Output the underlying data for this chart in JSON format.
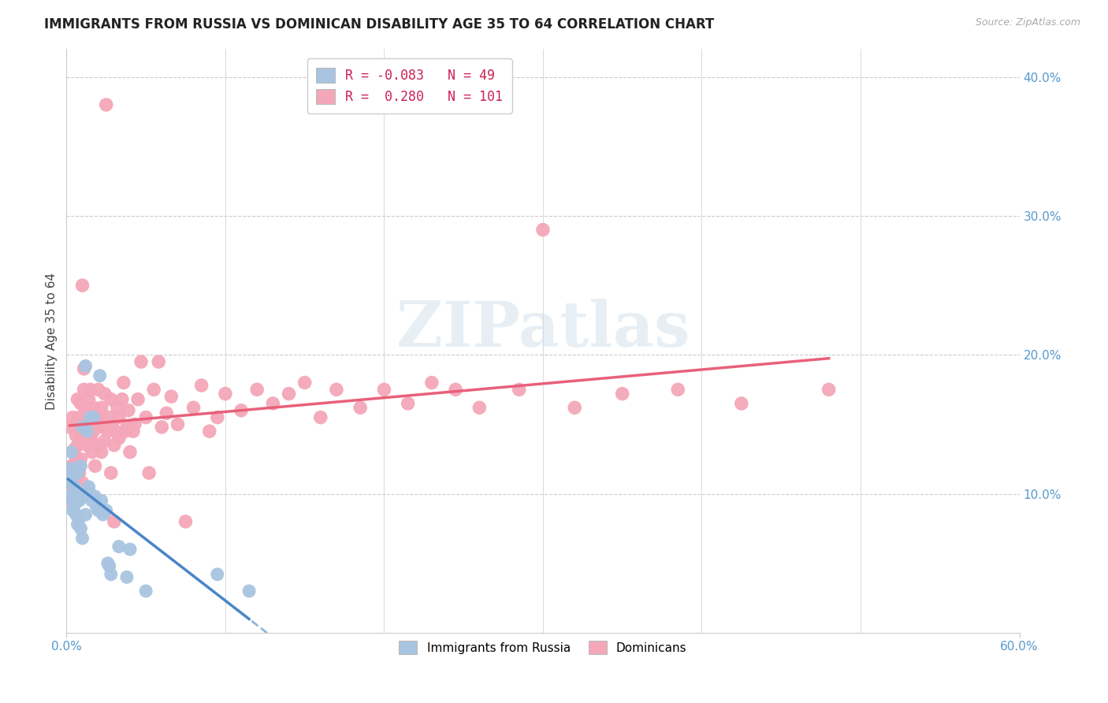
{
  "title": "IMMIGRANTS FROM RUSSIA VS DOMINICAN DISABILITY AGE 35 TO 64 CORRELATION CHART",
  "source": "Source: ZipAtlas.com",
  "ylabel_label": "Disability Age 35 to 64",
  "xlim": [
    0.0,
    0.6
  ],
  "ylim": [
    0.0,
    0.42
  ],
  "x_ticks": [
    0.0,
    0.6
  ],
  "x_tick_labels": [
    "0.0%",
    "60.0%"
  ],
  "y_ticks": [
    0.1,
    0.2,
    0.3,
    0.4
  ],
  "y_tick_labels": [
    "10.0%",
    "20.0%",
    "30.0%",
    "40.0%"
  ],
  "russia_color": "#a8c4e0",
  "dominican_color": "#f4a7b9",
  "russia_line_color": "#4a86c8",
  "dominican_line_color": "#e8607a",
  "russia_dash_color": "#90b8d8",
  "russia_R": -0.083,
  "russia_N": 49,
  "dominican_R": 0.28,
  "dominican_N": 101,
  "legend_label_russia": "Immigrants from Russia",
  "legend_label_dominican": "Dominicans",
  "watermark": "ZIPatlas",
  "russia_scatter": [
    [
      0.001,
      0.118
    ],
    [
      0.002,
      0.098
    ],
    [
      0.003,
      0.108
    ],
    [
      0.003,
      0.13
    ],
    [
      0.004,
      0.112
    ],
    [
      0.004,
      0.095
    ],
    [
      0.004,
      0.088
    ],
    [
      0.005,
      0.105
    ],
    [
      0.005,
      0.092
    ],
    [
      0.005,
      0.118
    ],
    [
      0.006,
      0.095
    ],
    [
      0.006,
      0.085
    ],
    [
      0.006,
      0.102
    ],
    [
      0.007,
      0.098
    ],
    [
      0.007,
      0.078
    ],
    [
      0.007,
      0.115
    ],
    [
      0.008,
      0.082
    ],
    [
      0.008,
      0.095
    ],
    [
      0.009,
      0.12
    ],
    [
      0.009,
      0.1
    ],
    [
      0.009,
      0.075
    ],
    [
      0.01,
      0.068
    ],
    [
      0.01,
      0.148
    ],
    [
      0.011,
      0.098
    ],
    [
      0.012,
      0.085
    ],
    [
      0.012,
      0.192
    ],
    [
      0.013,
      0.145
    ],
    [
      0.013,
      0.1
    ],
    [
      0.014,
      0.105
    ],
    [
      0.015,
      0.155
    ],
    [
      0.015,
      0.1
    ],
    [
      0.016,
      0.095
    ],
    [
      0.017,
      0.155
    ],
    [
      0.018,
      0.098
    ],
    [
      0.019,
      0.09
    ],
    [
      0.02,
      0.088
    ],
    [
      0.021,
      0.185
    ],
    [
      0.022,
      0.095
    ],
    [
      0.023,
      0.085
    ],
    [
      0.025,
      0.088
    ],
    [
      0.026,
      0.05
    ],
    [
      0.027,
      0.048
    ],
    [
      0.028,
      0.042
    ],
    [
      0.033,
      0.062
    ],
    [
      0.038,
      0.04
    ],
    [
      0.04,
      0.06
    ],
    [
      0.05,
      0.03
    ],
    [
      0.095,
      0.042
    ],
    [
      0.115,
      0.03
    ]
  ],
  "dominican_scatter": [
    [
      0.002,
      0.148
    ],
    [
      0.003,
      0.12
    ],
    [
      0.003,
      0.095
    ],
    [
      0.004,
      0.155
    ],
    [
      0.004,
      0.105
    ],
    [
      0.005,
      0.132
    ],
    [
      0.005,
      0.118
    ],
    [
      0.006,
      0.142
    ],
    [
      0.006,
      0.125
    ],
    [
      0.006,
      0.148
    ],
    [
      0.007,
      0.112
    ],
    [
      0.007,
      0.168
    ],
    [
      0.007,
      0.135
    ],
    [
      0.008,
      0.115
    ],
    [
      0.008,
      0.155
    ],
    [
      0.009,
      0.142
    ],
    [
      0.009,
      0.125
    ],
    [
      0.009,
      0.165
    ],
    [
      0.01,
      0.108
    ],
    [
      0.01,
      0.25
    ],
    [
      0.011,
      0.175
    ],
    [
      0.011,
      0.19
    ],
    [
      0.012,
      0.148
    ],
    [
      0.012,
      0.162
    ],
    [
      0.013,
      0.135
    ],
    [
      0.013,
      0.155
    ],
    [
      0.014,
      0.168
    ],
    [
      0.014,
      0.142
    ],
    [
      0.015,
      0.175
    ],
    [
      0.015,
      0.148
    ],
    [
      0.016,
      0.138
    ],
    [
      0.016,
      0.13
    ],
    [
      0.017,
      0.162
    ],
    [
      0.017,
      0.145
    ],
    [
      0.018,
      0.155
    ],
    [
      0.018,
      0.12
    ],
    [
      0.019,
      0.148
    ],
    [
      0.02,
      0.175
    ],
    [
      0.02,
      0.135
    ],
    [
      0.021,
      0.155
    ],
    [
      0.022,
      0.13
    ],
    [
      0.022,
      0.162
    ],
    [
      0.023,
      0.148
    ],
    [
      0.024,
      0.172
    ],
    [
      0.024,
      0.138
    ],
    [
      0.025,
      0.38
    ],
    [
      0.026,
      0.145
    ],
    [
      0.027,
      0.155
    ],
    [
      0.028,
      0.168
    ],
    [
      0.028,
      0.115
    ],
    [
      0.029,
      0.148
    ],
    [
      0.03,
      0.135
    ],
    [
      0.03,
      0.08
    ],
    [
      0.031,
      0.145
    ],
    [
      0.032,
      0.162
    ],
    [
      0.033,
      0.14
    ],
    [
      0.033,
      0.155
    ],
    [
      0.035,
      0.168
    ],
    [
      0.036,
      0.18
    ],
    [
      0.037,
      0.145
    ],
    [
      0.038,
      0.148
    ],
    [
      0.039,
      0.16
    ],
    [
      0.04,
      0.13
    ],
    [
      0.042,
      0.145
    ],
    [
      0.043,
      0.15
    ],
    [
      0.045,
      0.168
    ],
    [
      0.047,
      0.195
    ],
    [
      0.05,
      0.155
    ],
    [
      0.052,
      0.115
    ],
    [
      0.055,
      0.175
    ],
    [
      0.058,
      0.195
    ],
    [
      0.06,
      0.148
    ],
    [
      0.063,
      0.158
    ],
    [
      0.066,
      0.17
    ],
    [
      0.07,
      0.15
    ],
    [
      0.075,
      0.08
    ],
    [
      0.08,
      0.162
    ],
    [
      0.085,
      0.178
    ],
    [
      0.09,
      0.145
    ],
    [
      0.095,
      0.155
    ],
    [
      0.1,
      0.172
    ],
    [
      0.11,
      0.16
    ],
    [
      0.12,
      0.175
    ],
    [
      0.13,
      0.165
    ],
    [
      0.14,
      0.172
    ],
    [
      0.15,
      0.18
    ],
    [
      0.16,
      0.155
    ],
    [
      0.17,
      0.175
    ],
    [
      0.185,
      0.162
    ],
    [
      0.2,
      0.175
    ],
    [
      0.215,
      0.165
    ],
    [
      0.23,
      0.18
    ],
    [
      0.245,
      0.175
    ],
    [
      0.26,
      0.162
    ],
    [
      0.285,
      0.175
    ],
    [
      0.3,
      0.29
    ],
    [
      0.32,
      0.162
    ],
    [
      0.35,
      0.172
    ],
    [
      0.385,
      0.175
    ],
    [
      0.425,
      0.165
    ],
    [
      0.48,
      0.175
    ]
  ]
}
